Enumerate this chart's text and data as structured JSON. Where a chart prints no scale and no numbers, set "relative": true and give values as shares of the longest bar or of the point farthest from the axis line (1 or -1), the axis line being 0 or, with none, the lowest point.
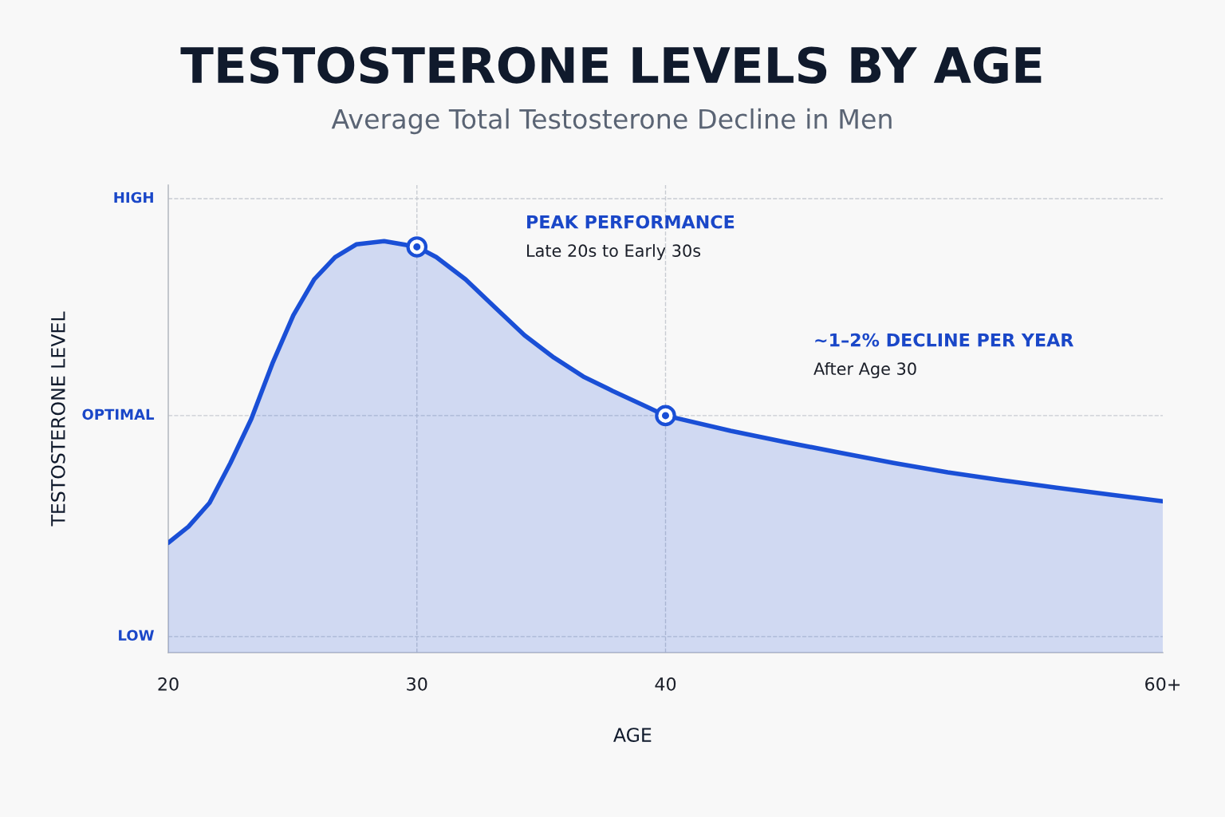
{
  "chart_data": {
    "type": "area",
    "title": "TESTOSTERONE LEVELS BY AGE",
    "subtitle": "Average Total Testosterone Decline in Men",
    "xlabel": "AGE",
    "ylabel": "TESTOSTERONE LEVEL",
    "relative": true,
    "xlim": [
      20,
      60
    ],
    "xticks": [
      20,
      30,
      40,
      {
        "value": 60,
        "label": "60+"
      }
    ],
    "grid": false,
    "series": [
      {
        "color": "#1a4fd6",
        "x": [
          20,
          20.81,
          21.66,
          22.5,
          23.34,
          24.19,
          25.03,
          25.87,
          26.71,
          27.56,
          28.68,
          30,
          30.78,
          31.96,
          33.14,
          34.33,
          35.51,
          36.69,
          37.87,
          39.05,
          40,
          42.62,
          44.8,
          46.99,
          49.17,
          51.35,
          53.54,
          55.72,
          57.9,
          60
        ],
        "values": [
          0.267,
          0.306,
          0.364,
          0.461,
          0.568,
          0.703,
          0.82,
          0.907,
          0.961,
          0.992,
          1.0,
          0.986,
          0.961,
          0.907,
          0.839,
          0.771,
          0.717,
          0.671,
          0.636,
          0.603,
          0.576,
          0.539,
          0.512,
          0.486,
          0.461,
          0.438,
          0.419,
          0.401,
          0.384,
          0.368
        ]
      },
      {
        "type": "scatter",
        "color": "#1a4fd6",
        "marker": "circle",
        "x": [
          30,
          40
        ],
        "values": [
          0.986,
          0.576
        ]
      }
    ],
    "ref_lines": [
      {
        "axis": "y",
        "value": 1.103,
        "label": "HIGH",
        "color": "#c8ccd2",
        "line_style": "dashed"
      },
      {
        "axis": "y",
        "value": 0.576,
        "label": "OPTIMAL",
        "color": "#c8ccd2",
        "line_style": "dashed"
      },
      {
        "axis": "y",
        "value": 0.039,
        "label": "LOW",
        "color": "#c8ccd2",
        "line_style": "dashed"
      },
      {
        "axis": "x",
        "value": 30,
        "color": "#c8ccd2",
        "line_style": "dashed"
      },
      {
        "axis": "x",
        "value": 40,
        "color": "#c8ccd2",
        "line_style": "dashed"
      }
    ],
    "annotations": [
      "PEAK PERFORMANCE",
      "Late 20s to Early 30s",
      "~1–2% DECLINE PER YEAR",
      "After Age 30"
    ]
  }
}
